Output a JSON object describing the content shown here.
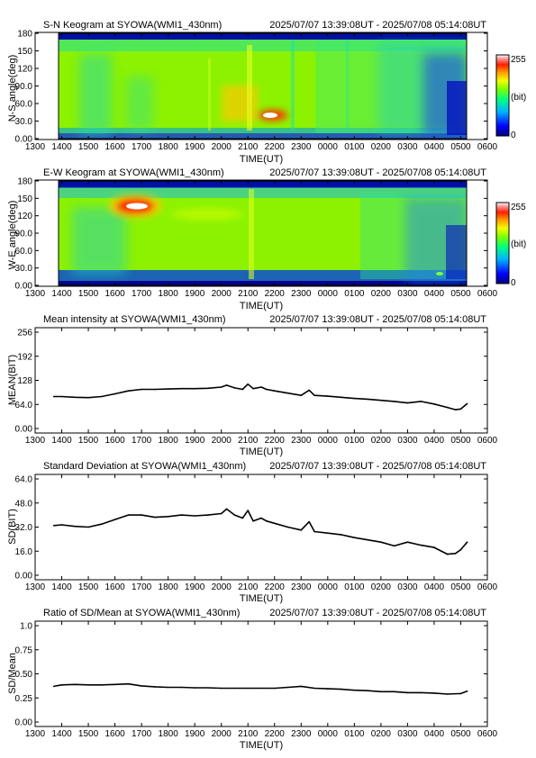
{
  "colors": {
    "line": "#000000",
    "colormap": [
      "#00007a",
      "#0000ff",
      "#00b4ff",
      "#00ff96",
      "#64ff00",
      "#dcff00",
      "#ffc800",
      "#ff5000",
      "#e60000",
      "#ffffff"
    ]
  },
  "x_ticks": [
    "1300",
    "1400",
    "1500",
    "1600",
    "1700",
    "1800",
    "1900",
    "2000",
    "2100",
    "2200",
    "2300",
    "0000",
    "0100",
    "0200",
    "0300",
    "0400",
    "0500",
    "0600"
  ],
  "panels": [
    {
      "title": "S-N Keogram at SYOWA(WMI1_430nm)",
      "range": "2025/07/07 13:39:08UT - 2025/07/08 05:14:08UT",
      "xlabel": "TIME(UT)",
      "ylabel": "N-S angle(deg)",
      "yticks": [
        "0.00",
        "30.0",
        "60.0",
        "90.0",
        "120",
        "150",
        "180"
      ],
      "colorbar": {
        "top": "255",
        "mid": "(bit)",
        "bottom": "0"
      }
    },
    {
      "title": "E-W Keogram at SYOWA(WMI1_430nm)",
      "range": "2025/07/07 13:39:08UT - 2025/07/08 05:14:08UT",
      "xlabel": "TIME(UT)",
      "ylabel": "W-E angle(deg)",
      "yticks": [
        "0.00",
        "30.0",
        "60.0",
        "90.0",
        "120",
        "150",
        "180"
      ],
      "colorbar": {
        "top": "255",
        "mid": "(bit)",
        "bottom": "0"
      }
    },
    {
      "title": "Mean intensity at SYOWA(WMI1_430nm)",
      "range": "2025/07/07 13:39:08UT - 2025/07/08 05:14:08UT",
      "xlabel": "TIME(UT)",
      "ylabel": "MEAN(BIT)",
      "yticks": [
        "0.00",
        "64.0",
        "128",
        "192",
        "256"
      ]
    },
    {
      "title": "Standard Deviation at SYOWA(WMI1_430nm)",
      "range": "2025/07/07 13:39:08UT - 2025/07/08 05:14:08UT",
      "xlabel": "TIME(UT)",
      "ylabel": "SD(BIT)",
      "yticks": [
        "0.00",
        "16.0",
        "32.0",
        "48.0",
        "64.0"
      ]
    },
    {
      "title": "Ratio of SD/Mean at SYOWA(WMI1_430nm)",
      "range": "2025/07/07 13:39:08UT - 2025/07/08 05:14:08UT",
      "xlabel": "TIME(UT)",
      "ylabel": "SD/Mean",
      "yticks": [
        "0.00",
        "0.25",
        "0.50",
        "0.75",
        "1.0"
      ]
    }
  ],
  "chart_data": [
    {
      "type": "heatmap",
      "title": "S-N Keogram at SYOWA(WMI1_430nm)",
      "xlabel": "TIME(UT)",
      "ylabel": "N-S angle(deg)",
      "xlim": [
        13.0,
        30.0
      ],
      "ylim": [
        0,
        180
      ],
      "data_range_hours": [
        13.652,
        29.236
      ],
      "colorbar_range": [
        0,
        255
      ],
      "colorbar_unit": "(bit)",
      "features": [
        {
          "x_hours": 22.1,
          "y_deg": 40,
          "intensity": 255
        },
        {
          "x_hours": 20.3,
          "y_deg": 60,
          "intensity": 190
        }
      ]
    },
    {
      "type": "heatmap",
      "title": "E-W Keogram at SYOWA(WMI1_430nm)",
      "xlabel": "TIME(UT)",
      "ylabel": "W-E angle(deg)",
      "xlim": [
        13.0,
        30.0
      ],
      "ylim": [
        0,
        180
      ],
      "data_range_hours": [
        13.652,
        29.236
      ],
      "colorbar_range": [
        0,
        255
      ],
      "colorbar_unit": "(bit)",
      "features": [
        {
          "x_hours": 16.8,
          "y_deg": 140,
          "intensity": 255
        },
        {
          "x_hours": 28.4,
          "y_deg": 12,
          "intensity": 130
        }
      ]
    },
    {
      "type": "line",
      "title": "Mean intensity at SYOWA(WMI1_430nm)",
      "xlabel": "TIME(UT)",
      "ylabel": "MEAN(BIT)",
      "xlim": [
        13.0,
        30.0
      ],
      "ylim": [
        0,
        256
      ],
      "x": [
        13.7,
        14.0,
        14.5,
        15.0,
        15.5,
        16.0,
        16.5,
        17.0,
        17.5,
        18.0,
        18.5,
        19.0,
        19.5,
        20.0,
        20.2,
        20.5,
        20.8,
        21.0,
        21.2,
        21.5,
        21.7,
        22.0,
        22.5,
        23.0,
        23.3,
        23.5,
        24.0,
        24.5,
        25.0,
        25.5,
        26.0,
        26.5,
        27.0,
        27.5,
        28.0,
        28.5,
        28.8,
        29.0,
        29.24
      ],
      "y": [
        85,
        85,
        83,
        82,
        85,
        92,
        100,
        104,
        104,
        105,
        106,
        106,
        107,
        110,
        115,
        108,
        104,
        118,
        106,
        110,
        104,
        100,
        94,
        88,
        102,
        88,
        86,
        83,
        80,
        78,
        75,
        72,
        68,
        72,
        65,
        56,
        50,
        52,
        66
      ]
    },
    {
      "type": "line",
      "title": "Standard Deviation at SYOWA(WMI1_430nm)",
      "xlabel": "TIME(UT)",
      "ylabel": "SD(BIT)",
      "xlim": [
        13.0,
        30.0
      ],
      "ylim": [
        0,
        64
      ],
      "x": [
        13.7,
        14.0,
        14.5,
        15.0,
        15.5,
        16.0,
        16.5,
        17.0,
        17.5,
        18.0,
        18.5,
        19.0,
        19.5,
        20.0,
        20.2,
        20.5,
        20.8,
        21.0,
        21.2,
        21.5,
        21.7,
        22.0,
        22.5,
        23.0,
        23.3,
        23.5,
        24.0,
        24.5,
        25.0,
        25.5,
        26.0,
        26.5,
        27.0,
        27.5,
        28.0,
        28.5,
        28.8,
        29.0,
        29.24
      ],
      "y": [
        33,
        33.5,
        32.5,
        32,
        34,
        37,
        40,
        40,
        38.5,
        39,
        40,
        39.5,
        40,
        41,
        44,
        40,
        38,
        43,
        36,
        38,
        36,
        34.5,
        32,
        30,
        35.5,
        29,
        28,
        27,
        25,
        23.5,
        22,
        19.5,
        22,
        20,
        18.5,
        14,
        14.5,
        17,
        22
      ]
    },
    {
      "type": "line",
      "title": "Ratio of SD/Mean at SYOWA(WMI1_430nm)",
      "xlabel": "TIME(UT)",
      "ylabel": "SD/Mean",
      "xlim": [
        13.0,
        30.0
      ],
      "ylim": [
        0,
        1.0
      ],
      "x": [
        13.7,
        14.0,
        14.5,
        15.0,
        15.5,
        16.0,
        16.5,
        17.0,
        17.5,
        18.0,
        18.5,
        19.0,
        19.5,
        20.0,
        20.5,
        21.0,
        21.5,
        22.0,
        22.5,
        23.0,
        23.5,
        24.0,
        24.5,
        25.0,
        25.5,
        26.0,
        26.5,
        27.0,
        27.5,
        28.0,
        28.5,
        29.0,
        29.24
      ],
      "y": [
        0.37,
        0.385,
        0.39,
        0.385,
        0.385,
        0.39,
        0.395,
        0.375,
        0.365,
        0.36,
        0.36,
        0.355,
        0.355,
        0.35,
        0.35,
        0.35,
        0.35,
        0.35,
        0.36,
        0.37,
        0.35,
        0.345,
        0.34,
        0.33,
        0.325,
        0.315,
        0.315,
        0.305,
        0.305,
        0.3,
        0.29,
        0.295,
        0.32
      ]
    }
  ]
}
